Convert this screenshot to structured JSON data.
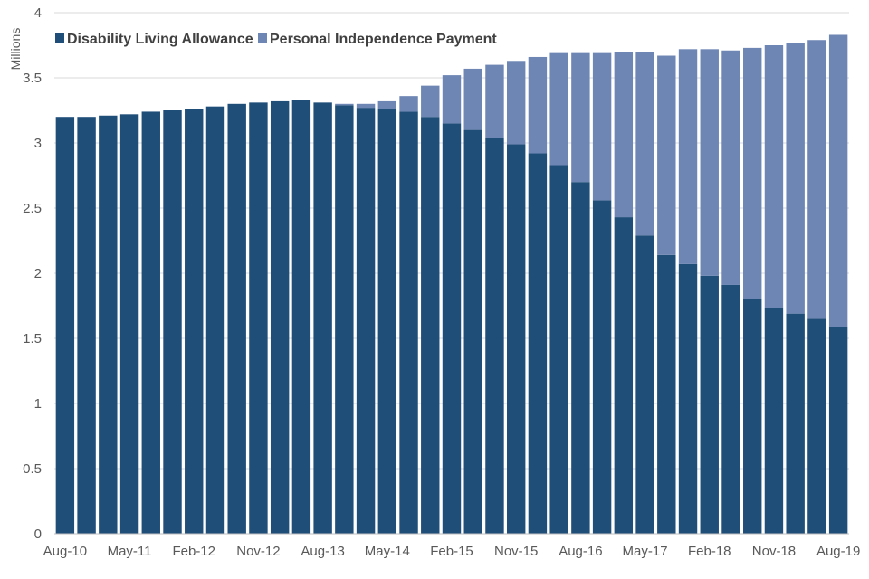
{
  "chart_data": {
    "type": "bar",
    "stacked": true,
    "title": "",
    "xlabel": "",
    "ylabel": "Millions",
    "ylim": [
      0,
      4
    ],
    "y_ticks": [
      "0",
      "0.5",
      "1",
      "1.5",
      "2",
      "2.5",
      "3",
      "3.5",
      "4"
    ],
    "grid": "horizontal",
    "legend_position": "top-left",
    "x_tick_labels": [
      "Aug-10",
      "May-11",
      "Feb-12",
      "Nov-12",
      "Aug-13",
      "May-14",
      "Feb-15",
      "Nov-15",
      "Aug-16",
      "May-17",
      "Feb-18",
      "Nov-18",
      "Aug-19"
    ],
    "categories": [
      "Aug-10",
      "Nov-10",
      "Feb-11",
      "May-11",
      "Aug-11",
      "Nov-11",
      "Feb-12",
      "May-12",
      "Aug-12",
      "Nov-12",
      "Feb-13",
      "May-13",
      "Aug-13",
      "Nov-13",
      "Feb-14",
      "May-14",
      "Aug-14",
      "Nov-14",
      "Feb-15",
      "May-15",
      "Aug-15",
      "Nov-15",
      "Feb-16",
      "May-16",
      "Aug-16",
      "Nov-16",
      "Feb-17",
      "May-17",
      "Aug-17",
      "Nov-17",
      "Feb-18",
      "May-18",
      "Aug-18",
      "Nov-18",
      "Feb-19",
      "May-19",
      "Aug-19"
    ],
    "series": [
      {
        "name": "Disability Living Allowance",
        "color": "#1f4e79",
        "values": [
          3.2,
          3.2,
          3.21,
          3.22,
          3.24,
          3.25,
          3.26,
          3.28,
          3.3,
          3.31,
          3.32,
          3.33,
          3.31,
          3.29,
          3.27,
          3.26,
          3.24,
          3.2,
          3.15,
          3.1,
          3.04,
          2.99,
          2.92,
          2.83,
          2.7,
          2.56,
          2.43,
          2.29,
          2.14,
          2.07,
          1.98,
          1.91,
          1.8,
          1.73,
          1.69,
          1.65,
          1.59
        ]
      },
      {
        "name": "Personal Independence Payment",
        "color": "#6e86b4",
        "values": [
          0,
          0,
          0,
          0,
          0,
          0,
          0,
          0,
          0,
          0,
          0,
          0,
          0.0,
          0.01,
          0.03,
          0.06,
          0.12,
          0.24,
          0.37,
          0.47,
          0.56,
          0.64,
          0.74,
          0.86,
          0.99,
          1.13,
          1.27,
          1.41,
          1.53,
          1.65,
          1.74,
          1.8,
          1.93,
          2.02,
          2.08,
          2.14,
          2.24
        ]
      }
    ]
  }
}
